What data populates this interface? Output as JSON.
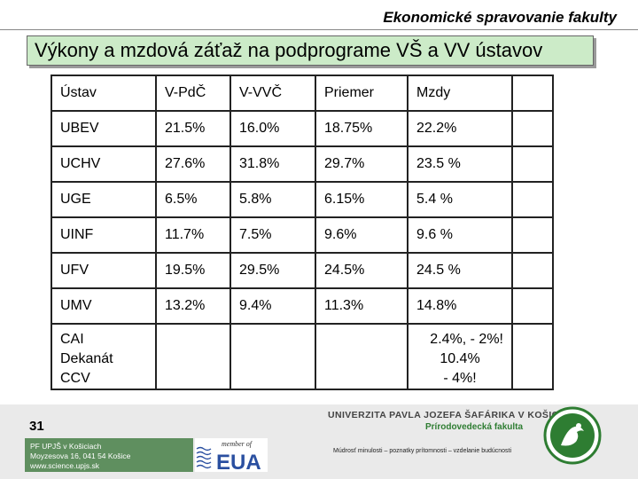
{
  "header": {
    "title": "Ekonomické spravovanie fakulty"
  },
  "slide": {
    "title": "Výkony a mzdová záťaž na podprograme VŠ a VV ústavov"
  },
  "table": {
    "header": [
      "Ústav",
      "V-PdČ",
      "V-VVČ",
      "Priemer",
      "Mzdy",
      ""
    ],
    "rows": [
      [
        "UBEV",
        "21.5%",
        "16.0%",
        "18.75%",
        "22.2%",
        ""
      ],
      [
        "UCHV",
        "27.6%",
        "31.8%",
        "29.7%",
        "23.5 %",
        ""
      ],
      [
        "UGE",
        "6.5%",
        "5.8%",
        "6.15%",
        "5.4 %",
        ""
      ],
      [
        "UINF",
        "11.7%",
        "7.5%",
        "9.6%",
        "9.6 %",
        ""
      ],
      [
        "UFV",
        "19.5%",
        "29.5%",
        "24.5%",
        "24.5 %",
        ""
      ],
      [
        "UMV",
        "13.2%",
        "9.4%",
        "11.3%",
        "14.8%",
        ""
      ]
    ],
    "last_row": {
      "unit": [
        "CAI",
        "Dekanát",
        "CCV"
      ],
      "mzdy": [
        "2.4%, - 2%!",
        "10.4%",
        "- 4%!"
      ]
    }
  },
  "footer": {
    "slide_number": "31",
    "address": [
      "PF UPJŠ v Košiciach",
      "Moyzesova 16, 041 54 Košice",
      "www.science.upjs.sk"
    ],
    "eua": {
      "member_of": "member of",
      "name": "EUA"
    },
    "university": "UNIVERZITA PAVLA JOZEFA ŠAFÁRIKA V KOŠICIACH",
    "faculty": "Prírodovedecká fakulta",
    "motto": "Múdrosť minulosti – poznatky prítomnosti – vzdelanie budúcnosti"
  }
}
